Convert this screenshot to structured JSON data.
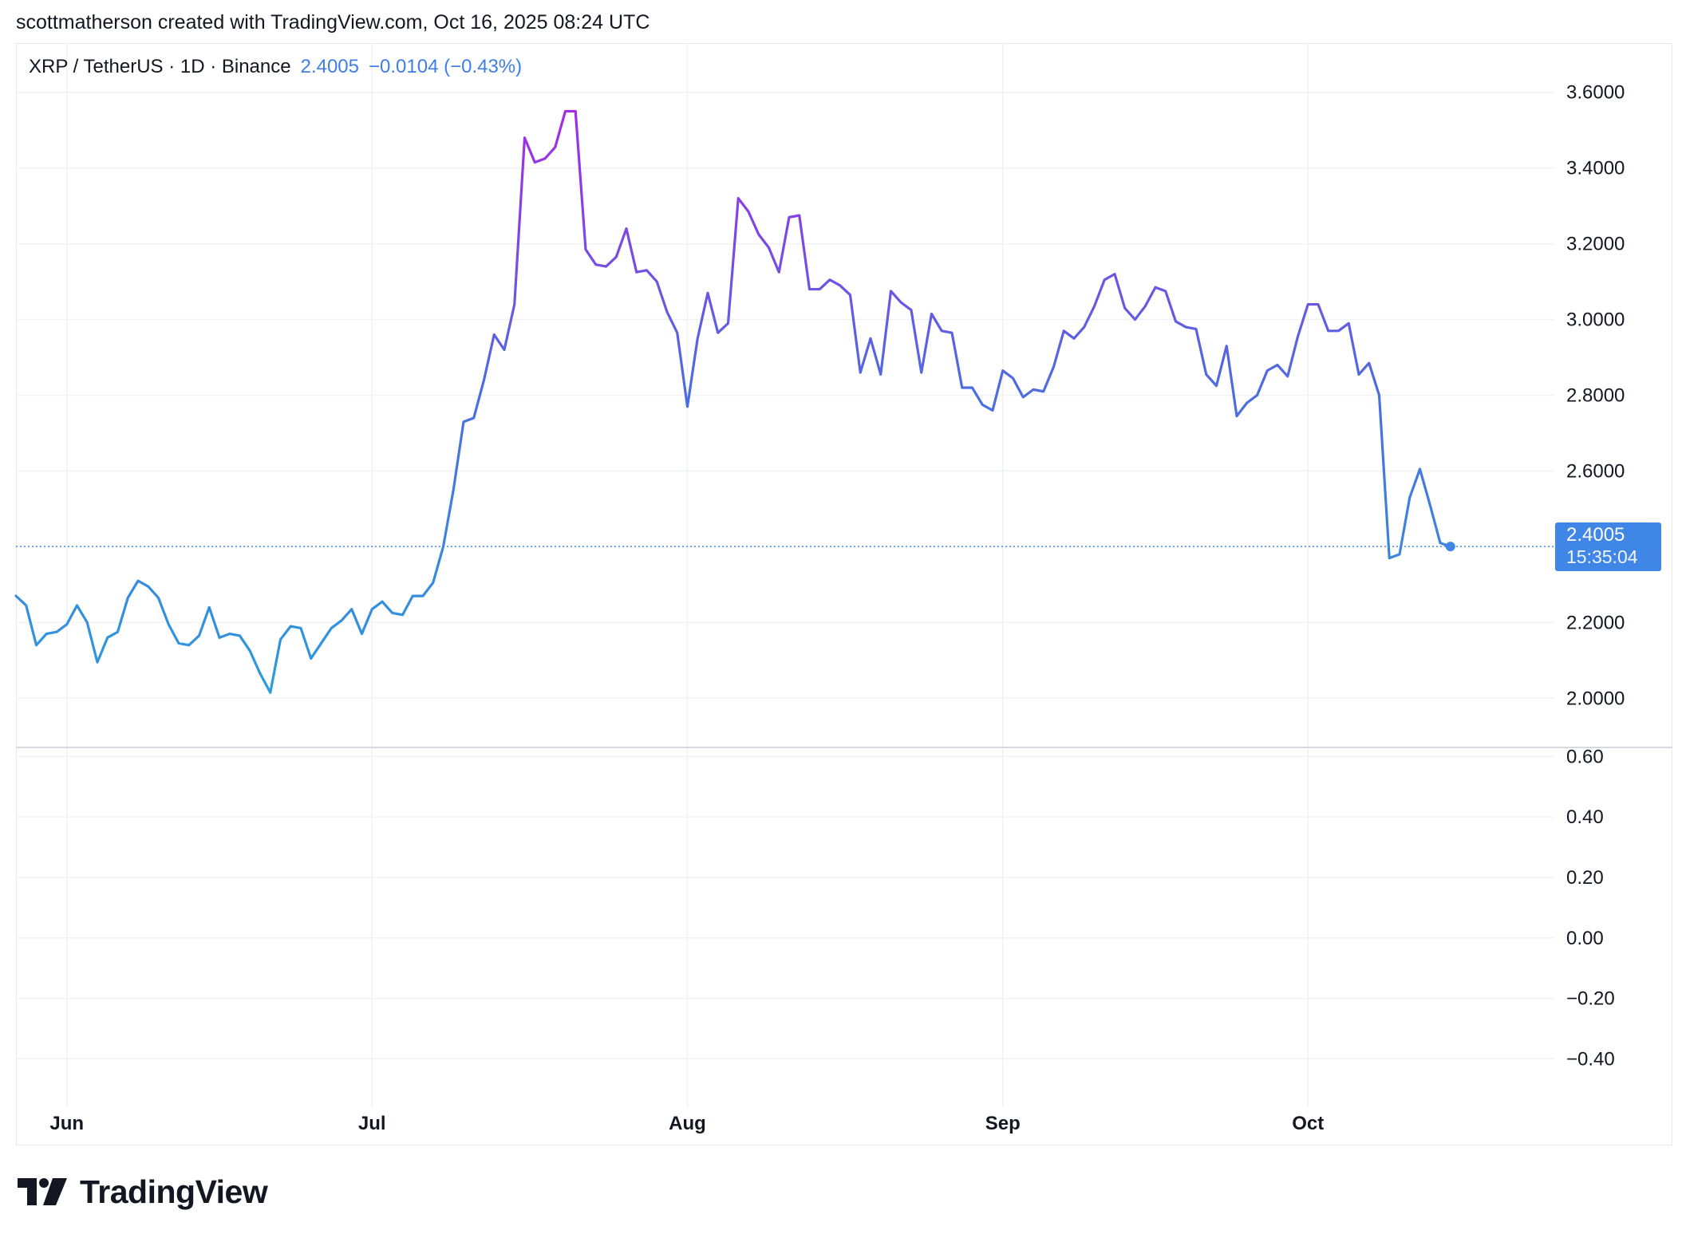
{
  "header": {
    "attribution": "scottmatherson created with TradingView.com, Oct 16, 2025 08:24 UTC"
  },
  "legend": {
    "symbol": "XRP / TetherUS · 1D · Binance",
    "price": "2.4005",
    "change": "−0.0104 (−0.43%)"
  },
  "price_label": {
    "value": "2.4005",
    "countdown": "15:35:04"
  },
  "brand": {
    "name": "TradingView",
    "logo_icon": "tradingview-logo-icon"
  },
  "colors": {
    "line_low": "#2d9bdc",
    "line_mid": "#4a6fe0",
    "line_high": "#a42be8",
    "price_label_bg": "#3f86e6",
    "grid": "#f0f2f5"
  },
  "chart_data": {
    "type": "line",
    "title": "",
    "xlabel": "",
    "ylabel": "",
    "price_pane": {
      "ylim": [
        1.87,
        3.73
      ],
      "y_ticks": [
        "3.6000",
        "3.4000",
        "3.2000",
        "3.0000",
        "2.8000",
        "2.6000",
        "2.2000",
        "2.0000"
      ],
      "y_tick_values": [
        3.6,
        3.4,
        3.2,
        3.0,
        2.8,
        2.6,
        2.2,
        2.0
      ],
      "last_price": 2.4005,
      "series": [
        {
          "values": [
            2.27,
            2.245,
            2.14,
            2.17,
            2.175,
            2.195,
            2.245,
            2.2,
            2.095,
            2.16,
            2.175,
            2.265,
            2.31,
            2.295,
            2.265,
            2.195,
            2.145,
            2.14,
            2.165,
            2.24,
            2.16,
            2.17,
            2.165,
            2.125,
            2.065,
            2.015,
            2.155,
            2.19,
            2.185,
            2.105,
            2.145,
            2.185,
            2.205,
            2.235,
            2.17,
            2.235,
            2.255,
            2.225,
            2.22,
            2.27,
            2.27,
            2.305,
            2.4,
            2.55,
            2.73,
            2.74,
            2.84,
            2.96,
            2.92,
            3.04,
            3.48,
            3.415,
            3.425,
            3.455,
            3.55,
            3.55,
            3.185,
            3.145,
            3.14,
            3.165,
            3.24,
            3.125,
            3.13,
            3.1,
            3.02,
            2.965,
            2.77,
            2.95,
            3.07,
            2.965,
            2.99,
            3.32,
            3.285,
            3.225,
            3.19,
            3.125,
            3.27,
            3.275,
            3.08,
            3.08,
            3.105,
            3.09,
            3.065,
            2.86,
            2.95,
            2.855,
            3.075,
            3.045,
            3.025,
            2.86,
            3.015,
            2.97,
            2.965,
            2.82,
            2.82,
            2.775,
            2.76,
            2.865,
            2.845,
            2.795,
            2.815,
            2.81,
            2.875,
            2.97,
            2.95,
            2.98,
            3.035,
            3.105,
            3.12,
            3.03,
            3.0,
            3.035,
            3.085,
            3.075,
            2.995,
            2.98,
            2.975,
            2.855,
            2.825,
            2.93,
            2.745,
            2.78,
            2.8,
            2.865,
            2.88,
            2.85,
            2.955,
            3.04,
            3.04,
            2.97,
            2.97,
            2.99,
            2.855,
            2.885,
            2.8,
            2.37,
            2.38,
            2.53,
            2.605,
            2.51,
            2.41,
            2.4005
          ]
        }
      ]
    },
    "indicator_pane": {
      "ylim": [
        -0.56,
        0.63
      ],
      "y_ticks": [
        "0.60",
        "0.40",
        "0.20",
        "0.00",
        "−0.20",
        "−0.40"
      ],
      "y_tick_values": [
        0.6,
        0.4,
        0.2,
        0.0,
        -0.2,
        -0.4
      ]
    },
    "x_start": "2025-05-27",
    "x_month_ticks": [
      {
        "label": "Jun",
        "day_index": 5
      },
      {
        "label": "Jul",
        "day_index": 35
      },
      {
        "label": "Aug",
        "day_index": 66
      },
      {
        "label": "Sep",
        "day_index": 97
      },
      {
        "label": "Oct",
        "day_index": 127
      }
    ],
    "grid": true
  }
}
